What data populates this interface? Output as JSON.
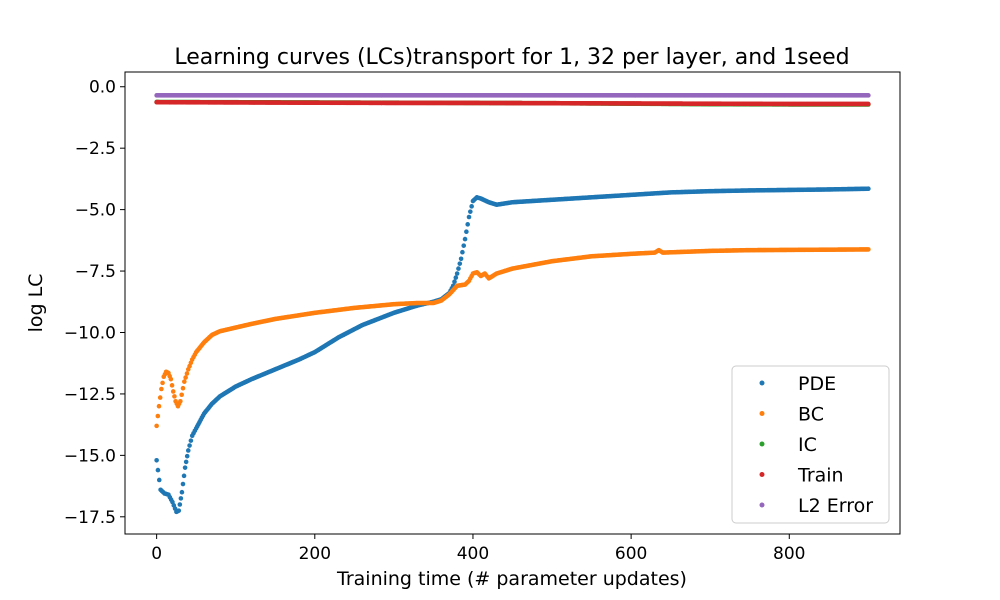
{
  "chart_data": {
    "type": "scatter",
    "title": "Learning curves (LCs)transport for 1, 32 per layer, and 1seed",
    "xlabel": "Training time (# parameter updates)",
    "ylabel": "log LC",
    "xlim": [
      -40,
      940
    ],
    "ylim": [
      -18.2,
      0.6
    ],
    "xticks": [
      0,
      200,
      400,
      600,
      800
    ],
    "yticks": [
      0.0,
      -2.5,
      -5.0,
      -7.5,
      -10.0,
      -12.5,
      -15.0,
      -17.5
    ],
    "xtick_labels": [
      "0",
      "200",
      "400",
      "600",
      "800"
    ],
    "ytick_labels": [
      "0.0",
      "−2.5",
      "−5.0",
      "−7.5",
      "−10.0",
      "−12.5",
      "−15.0",
      "−17.5"
    ],
    "grid": false,
    "legend": "lower right",
    "colors": {
      "PDE": "#1f77b4",
      "BC": "#ff7f0e",
      "IC": "#2ca02c",
      "Train": "#d62728",
      "L2 Error": "#9467bd"
    },
    "series": [
      {
        "name": "PDE",
        "x": [
          0,
          5,
          10,
          15,
          20,
          25,
          28,
          32,
          36,
          40,
          45,
          50,
          60,
          70,
          80,
          100,
          120,
          150,
          180,
          200,
          230,
          260,
          300,
          330,
          350,
          360,
          370,
          375,
          380,
          385,
          390,
          395,
          400,
          405,
          410,
          420,
          430,
          450,
          500,
          550,
          600,
          650,
          700,
          750,
          800,
          850,
          900
        ],
        "y": [
          -15.2,
          -16.4,
          -16.55,
          -16.6,
          -16.9,
          -17.3,
          -17.25,
          -16.5,
          -15.5,
          -14.8,
          -14.2,
          -13.9,
          -13.3,
          -12.9,
          -12.6,
          -12.2,
          -11.9,
          -11.5,
          -11.1,
          -10.8,
          -10.2,
          -9.7,
          -9.2,
          -8.9,
          -8.75,
          -8.65,
          -8.4,
          -8.1,
          -7.6,
          -7.0,
          -6.2,
          -5.3,
          -4.65,
          -4.5,
          -4.55,
          -4.7,
          -4.8,
          -4.7,
          -4.6,
          -4.5,
          -4.4,
          -4.3,
          -4.25,
          -4.22,
          -4.2,
          -4.18,
          -4.15
        ]
      },
      {
        "name": "BC",
        "x": [
          0,
          3,
          6,
          9,
          12,
          15,
          18,
          21,
          24,
          27,
          30,
          35,
          40,
          45,
          50,
          60,
          70,
          80,
          100,
          120,
          150,
          200,
          250,
          300,
          330,
          350,
          360,
          370,
          380,
          390,
          395,
          400,
          405,
          410,
          415,
          420,
          430,
          450,
          500,
          550,
          600,
          630,
          635,
          640,
          700,
          750,
          800,
          850,
          900
        ],
        "y": [
          -13.8,
          -13.0,
          -12.3,
          -11.8,
          -11.6,
          -11.65,
          -11.9,
          -12.4,
          -12.8,
          -13.0,
          -12.8,
          -12.0,
          -11.5,
          -11.1,
          -10.8,
          -10.4,
          -10.1,
          -9.95,
          -9.8,
          -9.65,
          -9.45,
          -9.2,
          -9.0,
          -8.85,
          -8.8,
          -8.8,
          -8.7,
          -8.45,
          -8.1,
          -8.05,
          -7.9,
          -7.6,
          -7.55,
          -7.7,
          -7.6,
          -7.8,
          -7.6,
          -7.4,
          -7.1,
          -6.9,
          -6.8,
          -6.75,
          -6.65,
          -6.75,
          -6.68,
          -6.65,
          -6.64,
          -6.63,
          -6.62
        ]
      },
      {
        "name": "IC",
        "x": [
          0,
          100,
          200,
          300,
          400,
          500,
          600,
          700,
          800,
          900
        ],
        "y": [
          -0.62,
          -0.63,
          -0.64,
          -0.65,
          -0.66,
          -0.67,
          -0.69,
          -0.71,
          -0.72,
          -0.72
        ]
      },
      {
        "name": "Train",
        "x": [
          0,
          100,
          200,
          300,
          400,
          500,
          600,
          700,
          800,
          900
        ],
        "y": [
          -0.63,
          -0.64,
          -0.65,
          -0.66,
          -0.66,
          -0.67,
          -0.68,
          -0.69,
          -0.7,
          -0.7
        ]
      },
      {
        "name": "L2 Error",
        "x": [
          0,
          100,
          200,
          300,
          400,
          500,
          600,
          700,
          800,
          900
        ],
        "y": [
          -0.35,
          -0.35,
          -0.35,
          -0.35,
          -0.35,
          -0.35,
          -0.35,
          -0.35,
          -0.35,
          -0.35
        ]
      }
    ]
  }
}
